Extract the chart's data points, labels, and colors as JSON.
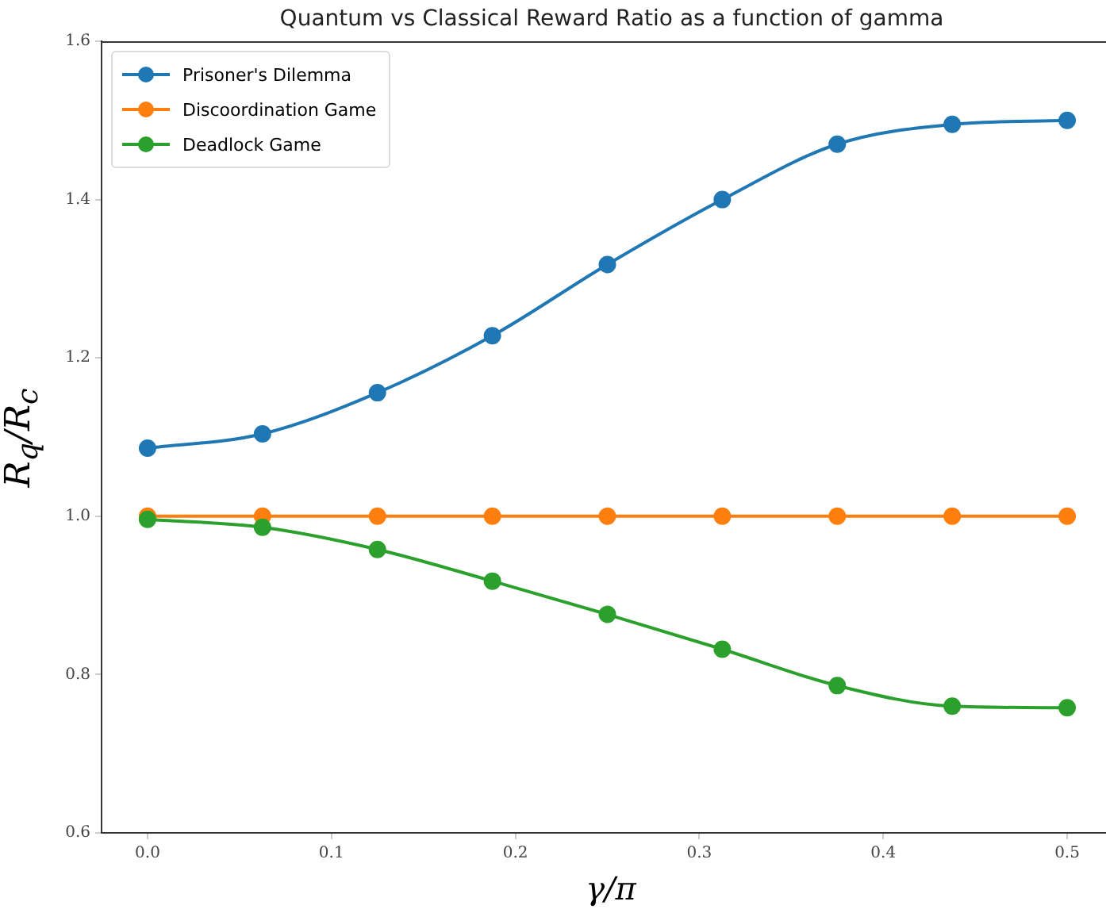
{
  "chart_data": {
    "type": "line",
    "title": "Quantum vs Classical Reward Ratio as a function of gamma",
    "xlabel": "γ/π",
    "ylabel": "R$_{q}$/R$_{c}$",
    "x": [
      0,
      0.0625,
      0.125,
      0.1875,
      0.25,
      0.3125,
      0.375,
      0.4375,
      0.5
    ],
    "series": [
      {
        "name": "Prisoner's Dilemma",
        "color": "#1f77b4",
        "values": [
          1.086,
          1.104,
          1.156,
          1.228,
          1.318,
          1.4,
          1.47,
          1.495,
          1.5
        ]
      },
      {
        "name": "Discoordination Game",
        "color": "#ff7f0e",
        "values": [
          1.0,
          1.0,
          1.0,
          1.0,
          1.0,
          1.0,
          1.0,
          1.0,
          1.0
        ]
      },
      {
        "name": "Deadlock Game",
        "color": "#2ca02c",
        "values": [
          0.996,
          0.986,
          0.958,
          0.918,
          0.876,
          0.832,
          0.786,
          0.76,
          0.758
        ]
      }
    ],
    "xlim": [
      -0.025,
      0.525
    ],
    "xticks": [
      {
        "value": 0,
        "label": "0.0"
      },
      0.1,
      0.2,
      0.3,
      0.4,
      0.5
    ],
    "ylim": [
      0.6,
      1.6
    ],
    "yticks": [
      0.6,
      0.8,
      {
        "value": 1,
        "label": "1.0"
      },
      1.2,
      1.4,
      1.6
    ],
    "grid": false,
    "legend": "top left",
    "marker": "circle",
    "line_style": "solid"
  }
}
